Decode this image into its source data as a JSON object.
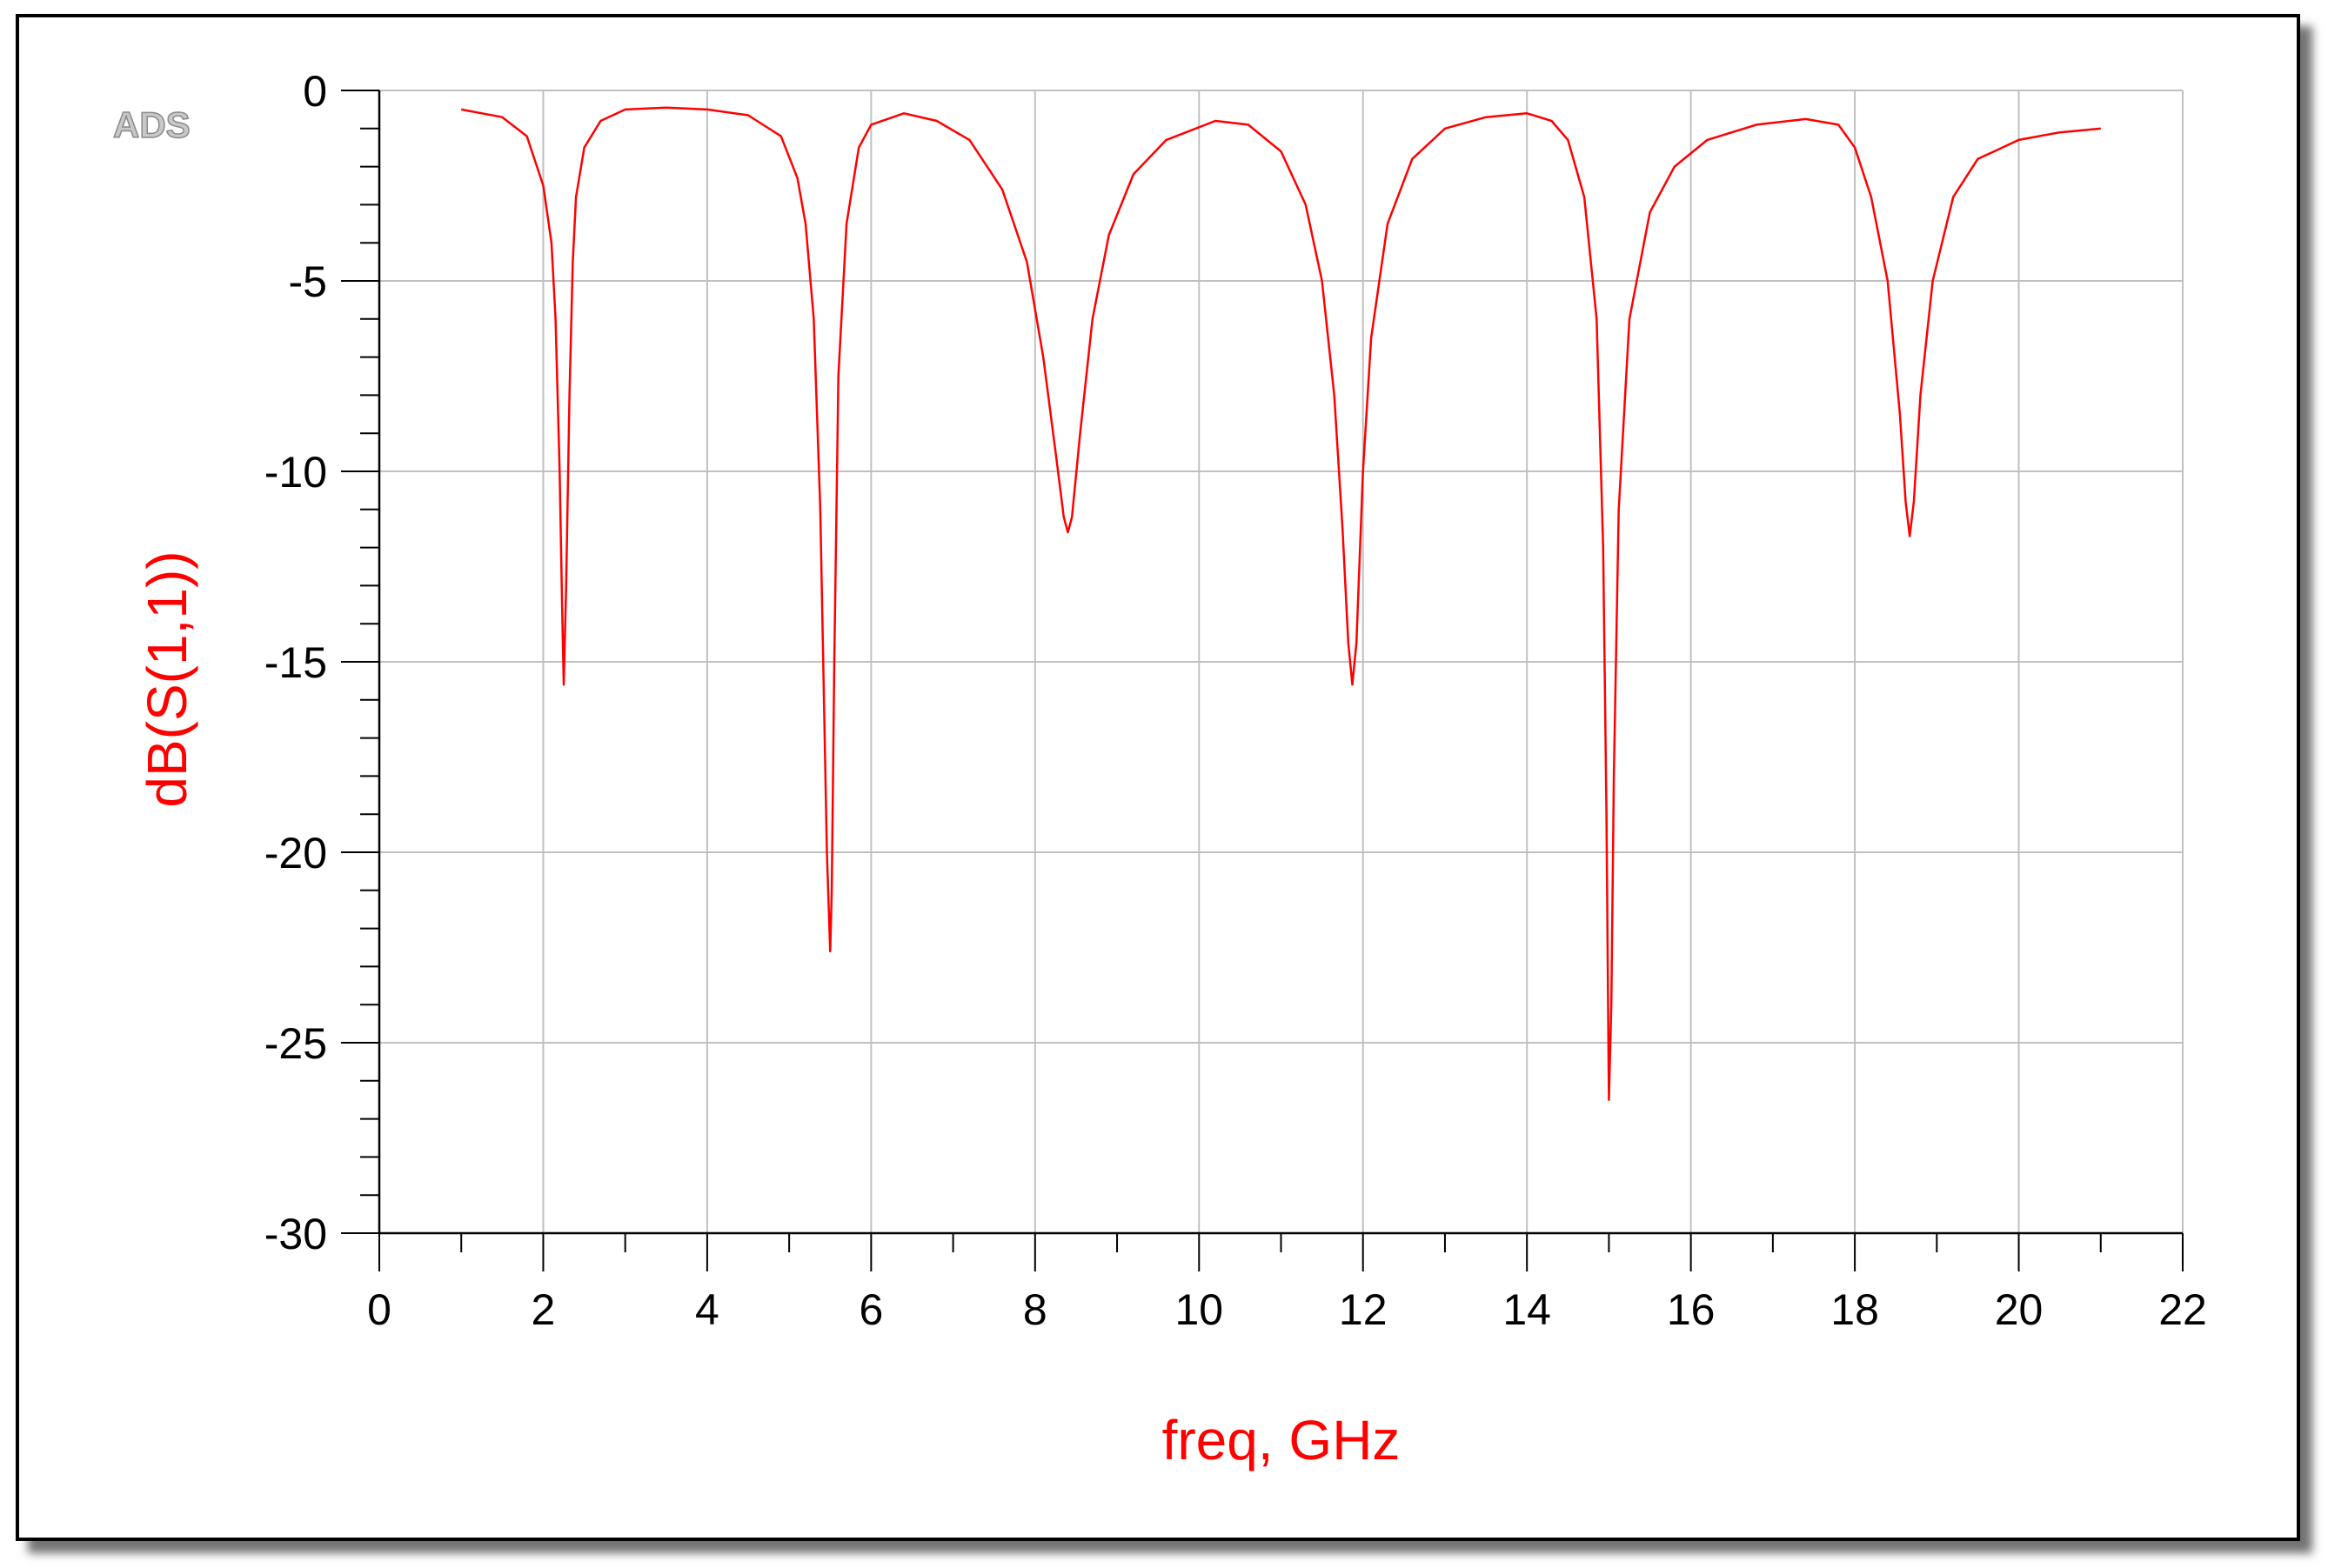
{
  "watermark": "ADS",
  "colors": {
    "trace": "#ff0000",
    "grid": "#c0c0c0",
    "axis": "#000000",
    "ylabel": "#ff0000",
    "xlabel": "#ff0000"
  },
  "chart_data": {
    "type": "line",
    "title": "",
    "xlabel": "freq, GHz",
    "ylabel": "dB(S(1,1))",
    "xlim": [
      0,
      22
    ],
    "ylim": [
      -30,
      0
    ],
    "x_ticks": [
      0,
      2,
      4,
      6,
      8,
      10,
      12,
      14,
      16,
      18,
      20,
      22
    ],
    "y_ticks": [
      0,
      -5,
      -10,
      -15,
      -20,
      -25,
      -30
    ],
    "grid": true,
    "legend": "none",
    "series": [
      {
        "color": "#ff0000",
        "x": [
          1.0,
          1.5,
          1.8,
          2.0,
          2.1,
          2.15,
          2.2,
          2.23,
          2.25,
          2.28,
          2.32,
          2.36,
          2.4,
          2.5,
          2.7,
          3.0,
          3.5,
          4.0,
          4.5,
          4.9,
          5.1,
          5.2,
          5.3,
          5.38,
          5.42,
          5.46,
          5.5,
          5.52,
          5.55,
          5.6,
          5.7,
          5.85,
          6.0,
          6.4,
          6.8,
          7.2,
          7.6,
          7.9,
          8.1,
          8.25,
          8.35,
          8.4,
          8.45,
          8.55,
          8.7,
          8.9,
          9.2,
          9.6,
          10.2,
          10.6,
          11.0,
          11.3,
          11.5,
          11.65,
          11.75,
          11.82,
          11.87,
          11.92,
          12.0,
          12.1,
          12.3,
          12.6,
          13.0,
          13.5,
          14.0,
          14.3,
          14.5,
          14.7,
          14.85,
          14.93,
          14.97,
          15.0,
          15.03,
          15.06,
          15.12,
          15.25,
          15.5,
          15.8,
          16.2,
          16.8,
          17.4,
          17.8,
          18.0,
          18.2,
          18.4,
          18.55,
          18.62,
          18.67,
          18.72,
          18.8,
          18.95,
          19.2,
          19.5,
          20.0,
          20.5,
          21.0
        ],
        "y": [
          -0.5,
          -0.7,
          -1.2,
          -2.5,
          -4.0,
          -6.0,
          -10.0,
          -13.5,
          -15.6,
          -13.0,
          -8.0,
          -4.5,
          -2.8,
          -1.5,
          -0.8,
          -0.5,
          -0.45,
          -0.5,
          -0.65,
          -1.2,
          -2.3,
          -3.5,
          -6.0,
          -11.0,
          -15.5,
          -20.0,
          -22.6,
          -21.0,
          -15.0,
          -7.5,
          -3.5,
          -1.5,
          -0.9,
          -0.6,
          -0.8,
          -1.3,
          -2.6,
          -4.5,
          -7.0,
          -9.5,
          -11.2,
          -11.6,
          -11.2,
          -9.0,
          -6.0,
          -3.8,
          -2.2,
          -1.3,
          -0.8,
          -0.9,
          -1.6,
          -3.0,
          -5.0,
          -8.0,
          -11.5,
          -14.5,
          -15.6,
          -14.5,
          -10.0,
          -6.5,
          -3.5,
          -1.8,
          -1.0,
          -0.7,
          -0.6,
          -0.8,
          -1.3,
          -2.8,
          -6.0,
          -12.0,
          -19.0,
          -26.5,
          -24.0,
          -18.0,
          -11.0,
          -6.0,
          -3.2,
          -2.0,
          -1.3,
          -0.9,
          -0.75,
          -0.9,
          -1.5,
          -2.8,
          -5.0,
          -8.5,
          -10.8,
          -11.7,
          -10.8,
          -8.0,
          -5.0,
          -2.8,
          -1.8,
          -1.3,
          -1.1,
          -1.0
        ]
      }
    ]
  }
}
